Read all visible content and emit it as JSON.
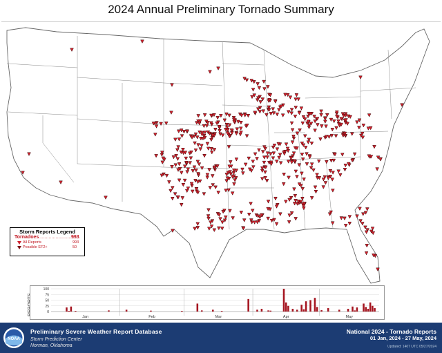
{
  "title": "2024 Annual Preliminary Tornado Summary",
  "colors": {
    "report": "#d0202c",
    "report_outline": "#3a0a0a",
    "legend_text": "#c0121c",
    "footer_bg": "#1c3c73",
    "bar": "#a51520"
  },
  "legend": {
    "title": "Storm Reports Legend",
    "tornadoes_label": "Tornadoes",
    "tornadoes_dots": "..............................",
    "tornadoes_value": "993",
    "all_reports_label": "All Reports",
    "all_reports_value": "993",
    "possible_ef2_label": "Possible EF2+",
    "possible_ef2_value": "50"
  },
  "chart_data": {
    "type": "bar",
    "ylabel": "REPORTS",
    "ylim": [
      0,
      100
    ],
    "yticks": [
      "100",
      "75",
      "50",
      "25",
      "0"
    ],
    "month_labels": [
      "Jan",
      "Feb",
      "Mar",
      "Apr",
      "May"
    ],
    "month_start_days": [
      1,
      32,
      61,
      92,
      122
    ],
    "days": [
      8,
      9,
      10,
      12,
      27,
      35,
      46,
      60,
      67,
      69,
      74,
      78,
      90,
      94,
      96,
      99,
      100,
      106,
      107,
      108,
      110,
      112,
      114,
      115,
      116,
      118,
      120,
      121,
      123,
      126,
      131,
      135,
      137,
      138,
      139,
      142,
      143,
      144,
      145,
      146,
      147
    ],
    "values": [
      18,
      3,
      22,
      3,
      5,
      8,
      4,
      3,
      35,
      5,
      8,
      3,
      55,
      8,
      12,
      5,
      4,
      100,
      40,
      25,
      12,
      8,
      30,
      10,
      45,
      50,
      60,
      20,
      6,
      15,
      8,
      12,
      22,
      5,
      18,
      35,
      20,
      12,
      40,
      25,
      15
    ]
  },
  "footer": {
    "title": "Preliminary Severe Weather Report Database",
    "org_line1": "Storm Prediction Center",
    "org_line2": "Norman, Oklahoma",
    "right_line1": "National 2024 - Tornado Reports",
    "right_line2": "01 Jan, 2024 - 27 May, 2024",
    "updated": "Updated: 1407 UTC 05/27/2024",
    "logo_text": "NOAA"
  }
}
